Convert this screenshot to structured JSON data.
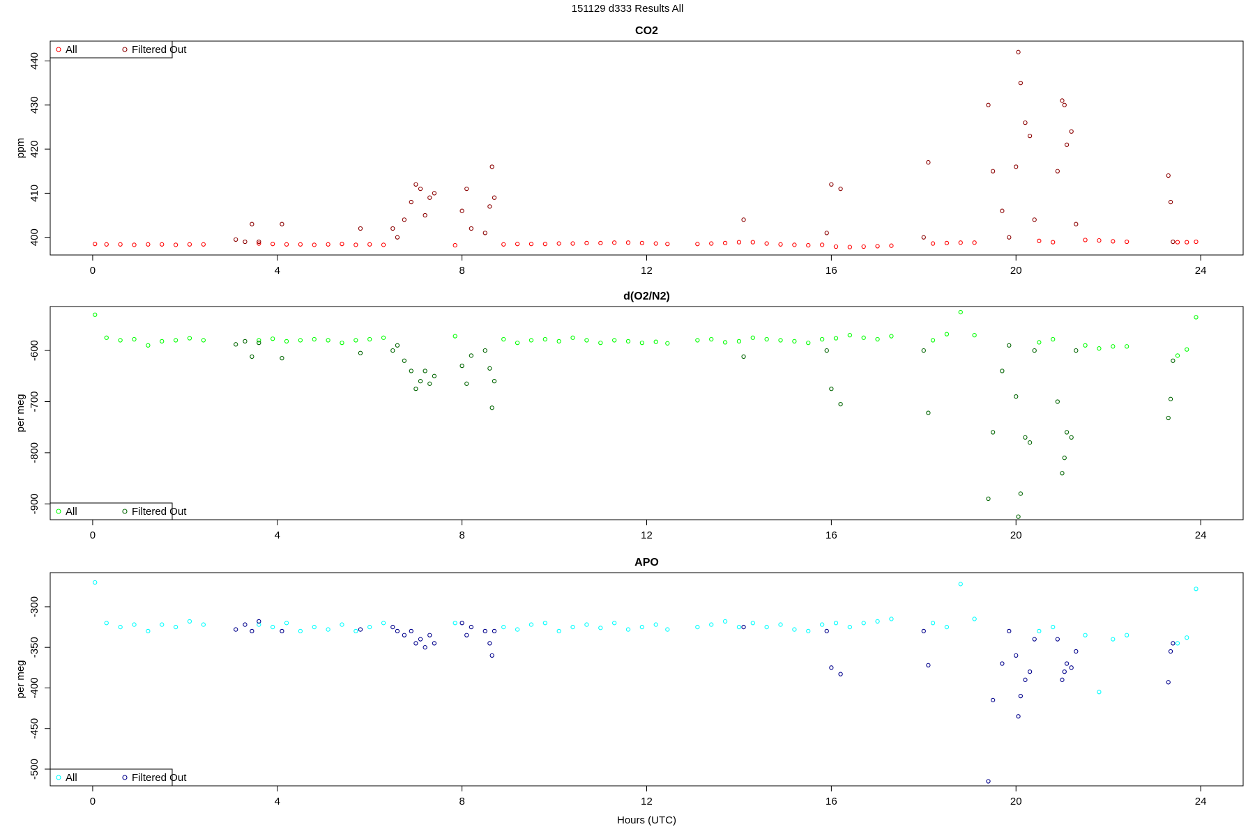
{
  "title": "151129   d333   Results All",
  "chart_data": [
    {
      "type": "scatter",
      "title": "CO2",
      "y_label": "ppm",
      "legend": "topleft",
      "xlim": [
        -0.92,
        24.92
      ],
      "xticks": [
        0,
        4,
        8,
        12,
        16,
        20,
        24
      ],
      "ylim": [
        396,
        444.5
      ],
      "yticks": [
        400,
        410,
        420,
        430,
        440
      ],
      "series": [
        {
          "name": "All",
          "color": "#ff0000",
          "x": [
            0.05,
            0.3,
            0.6,
            0.9,
            1.2,
            1.5,
            1.8,
            2.1,
            2.4,
            3.6,
            3.9,
            4.2,
            4.5,
            4.8,
            5.1,
            5.4,
            5.7,
            6.0,
            6.3,
            7.85,
            8.9,
            9.2,
            9.5,
            9.8,
            10.1,
            10.4,
            10.7,
            11.0,
            11.3,
            11.6,
            11.9,
            12.2,
            12.45,
            13.1,
            13.4,
            13.7,
            14.0,
            14.3,
            14.6,
            14.9,
            15.2,
            15.5,
            15.8,
            16.1,
            16.4,
            16.7,
            17.0,
            17.3,
            18.2,
            18.5,
            18.8,
            19.1,
            20.5,
            20.8,
            21.5,
            21.8,
            22.1,
            22.4,
            23.5,
            23.7,
            23.9
          ],
          "values": [
            398.5,
            398.4,
            398.4,
            398.3,
            398.4,
            398.4,
            398.3,
            398.4,
            398.4,
            398.6,
            398.5,
            398.4,
            398.4,
            398.3,
            398.4,
            398.5,
            398.3,
            398.4,
            398.3,
            398.2,
            398.4,
            398.5,
            398.5,
            398.5,
            398.6,
            398.6,
            398.7,
            398.7,
            398.8,
            398.8,
            398.7,
            398.6,
            398.5,
            398.5,
            398.6,
            398.7,
            398.9,
            398.9,
            398.6,
            398.4,
            398.3,
            398.2,
            398.3,
            397.9,
            397.8,
            397.9,
            398.0,
            398.1,
            398.6,
            398.7,
            398.8,
            398.8,
            399.2,
            398.9,
            399.4,
            399.3,
            399.1,
            399.0,
            398.9,
            398.9,
            399.0
          ]
        },
        {
          "name": "Filtered Out",
          "color": "#8b0000",
          "x": [
            3.1,
            3.3,
            3.45,
            3.6,
            4.1,
            5.8,
            6.5,
            6.6,
            6.75,
            6.9,
            7.0,
            7.1,
            7.2,
            7.3,
            7.4,
            8.0,
            8.1,
            8.2,
            8.5,
            8.6,
            8.65,
            8.7,
            14.1,
            15.9,
            16.0,
            16.2,
            18.0,
            18.1,
            19.4,
            19.5,
            19.7,
            19.85,
            20.0,
            20.05,
            20.1,
            20.2,
            20.3,
            20.4,
            20.9,
            21.0,
            21.05,
            21.1,
            21.2,
            21.3,
            23.3,
            23.35,
            23.4
          ],
          "values": [
            399.5,
            399,
            403,
            399,
            403,
            402,
            402,
            400,
            404,
            408,
            412,
            411,
            405,
            409,
            410,
            406,
            411,
            402,
            401,
            407,
            416,
            409,
            404,
            401,
            412,
            411,
            400,
            417,
            430,
            415,
            406,
            400,
            416,
            442,
            435,
            426,
            423,
            404,
            415,
            431,
            430,
            421,
            424,
            403,
            414,
            408,
            399
          ]
        }
      ]
    },
    {
      "type": "scatter",
      "title": "d(O2/N2)",
      "y_label": "per meg",
      "legend": "bottomleft",
      "xlim": [
        -0.92,
        24.92
      ],
      "xticks": [
        0,
        4,
        8,
        12,
        16,
        20,
        24
      ],
      "ylim": [
        -931,
        -514
      ],
      "yticks": [
        -900,
        -800,
        -700,
        -600
      ],
      "series": [
        {
          "name": "All",
          "color": "#00ff00",
          "x": [
            0.05,
            0.3,
            0.6,
            0.9,
            1.2,
            1.5,
            1.8,
            2.1,
            2.4,
            3.6,
            3.9,
            4.2,
            4.5,
            4.8,
            5.1,
            5.4,
            5.7,
            6.0,
            6.3,
            7.85,
            8.9,
            9.2,
            9.5,
            9.8,
            10.1,
            10.4,
            10.7,
            11.0,
            11.3,
            11.6,
            11.9,
            12.2,
            12.45,
            13.1,
            13.4,
            13.7,
            14.0,
            14.3,
            14.6,
            14.9,
            15.2,
            15.5,
            15.8,
            16.1,
            16.4,
            16.7,
            17.0,
            17.3,
            18.2,
            18.5,
            18.8,
            19.1,
            20.5,
            20.8,
            21.5,
            21.8,
            22.1,
            22.4,
            23.5,
            23.7,
            23.9
          ],
          "values": [
            -530,
            -575,
            -580,
            -578,
            -590,
            -582,
            -580,
            -576,
            -580,
            -580,
            -577,
            -582,
            -580,
            -578,
            -580,
            -585,
            -580,
            -578,
            -575,
            -572,
            -578,
            -585,
            -580,
            -578,
            -582,
            -575,
            -580,
            -585,
            -580,
            -582,
            -585,
            -583,
            -586,
            -580,
            -578,
            -584,
            -582,
            -575,
            -578,
            -580,
            -582,
            -585,
            -578,
            -576,
            -570,
            -575,
            -578,
            -572,
            -580,
            -568,
            -525,
            -570,
            -584,
            -578,
            -590,
            -596,
            -592,
            -592,
            -610,
            -598,
            -535
          ]
        },
        {
          "name": "Filtered Out",
          "color": "#006400",
          "x": [
            3.1,
            3.3,
            3.45,
            3.6,
            4.1,
            5.8,
            6.5,
            6.6,
            6.75,
            6.9,
            7.0,
            7.1,
            7.2,
            7.3,
            7.4,
            8.0,
            8.1,
            8.2,
            8.5,
            8.6,
            8.65,
            8.7,
            14.1,
            15.9,
            16.0,
            16.2,
            18.0,
            18.1,
            19.4,
            19.5,
            19.7,
            19.85,
            20.0,
            20.05,
            20.1,
            20.2,
            20.3,
            20.4,
            20.9,
            21.0,
            21.05,
            21.1,
            21.2,
            21.3,
            23.3,
            23.35,
            23.4
          ],
          "values": [
            -588,
            -582,
            -612,
            -585,
            -615,
            -605,
            -600,
            -590,
            -620,
            -640,
            -675,
            -660,
            -640,
            -665,
            -650,
            -630,
            -665,
            -610,
            -600,
            -635,
            -712,
            -660,
            -612,
            -600,
            -675,
            -705,
            -600,
            -722,
            -890,
            -760,
            -640,
            -590,
            -690,
            -925,
            -880,
            -770,
            -780,
            -600,
            -700,
            -840,
            -810,
            -760,
            -770,
            -600,
            -732,
            -695,
            -620
          ]
        }
      ]
    },
    {
      "type": "scatter",
      "title": "APO",
      "y_label": "per meg",
      "x_label": "Hours (UTC)",
      "legend": "bottomleft",
      "xlim": [
        -0.92,
        24.92
      ],
      "xticks": [
        0,
        4,
        8,
        12,
        16,
        20,
        24
      ],
      "ylim": [
        -520.6,
        -258
      ],
      "yticks": [
        -500,
        -450,
        -400,
        -350,
        -300
      ],
      "series": [
        {
          "name": "All",
          "color": "#00ffff",
          "x": [
            0.05,
            0.3,
            0.6,
            0.9,
            1.2,
            1.5,
            1.8,
            2.1,
            2.4,
            3.6,
            3.9,
            4.2,
            4.5,
            4.8,
            5.1,
            5.4,
            5.7,
            6.0,
            6.3,
            7.85,
            8.9,
            9.2,
            9.5,
            9.8,
            10.1,
            10.4,
            10.7,
            11.0,
            11.3,
            11.6,
            11.9,
            12.2,
            12.45,
            13.1,
            13.4,
            13.7,
            14.0,
            14.3,
            14.6,
            14.9,
            15.2,
            15.5,
            15.8,
            16.1,
            16.4,
            16.7,
            17.0,
            17.3,
            18.2,
            18.5,
            18.8,
            19.1,
            20.5,
            20.8,
            21.5,
            21.8,
            22.1,
            22.4,
            23.5,
            23.7,
            23.9
          ],
          "values": [
            -270,
            -320,
            -325,
            -322,
            -330,
            -322,
            -325,
            -318,
            -322,
            -322,
            -325,
            -320,
            -330,
            -325,
            -328,
            -322,
            -330,
            -325,
            -320,
            -320,
            -325,
            -328,
            -322,
            -320,
            -330,
            -325,
            -322,
            -326,
            -320,
            -328,
            -325,
            -322,
            -328,
            -325,
            -322,
            -318,
            -325,
            -320,
            -325,
            -322,
            -328,
            -330,
            -322,
            -320,
            -325,
            -320,
            -318,
            -315,
            -320,
            -325,
            -272,
            -315,
            -330,
            -325,
            -335,
            -405,
            -340,
            -335,
            -345,
            -338,
            -278
          ]
        },
        {
          "name": "Filtered Out",
          "color": "#00008b",
          "x": [
            3.1,
            3.3,
            3.45,
            3.6,
            4.1,
            5.8,
            6.5,
            6.6,
            6.75,
            6.9,
            7.0,
            7.1,
            7.2,
            7.3,
            7.4,
            8.0,
            8.1,
            8.2,
            8.5,
            8.6,
            8.65,
            8.7,
            14.1,
            15.9,
            16.0,
            16.2,
            18.0,
            18.1,
            19.4,
            19.5,
            19.7,
            19.85,
            20.0,
            20.05,
            20.1,
            20.2,
            20.3,
            20.4,
            20.9,
            21.0,
            21.05,
            21.1,
            21.2,
            21.3,
            23.3,
            23.35,
            23.4
          ],
          "values": [
            -328,
            -322,
            -330,
            -318,
            -330,
            -328,
            -325,
            -330,
            -335,
            -330,
            -345,
            -340,
            -350,
            -335,
            -345,
            -320,
            -335,
            -325,
            -330,
            -345,
            -360,
            -330,
            -325,
            -330,
            -375,
            -383,
            -330,
            -372,
            -515,
            -415,
            -370,
            -330,
            -360,
            -435,
            -410,
            -390,
            -380,
            -340,
            -340,
            -390,
            -380,
            -370,
            -375,
            -355,
            -393,
            -355,
            -345
          ]
        }
      ]
    }
  ]
}
